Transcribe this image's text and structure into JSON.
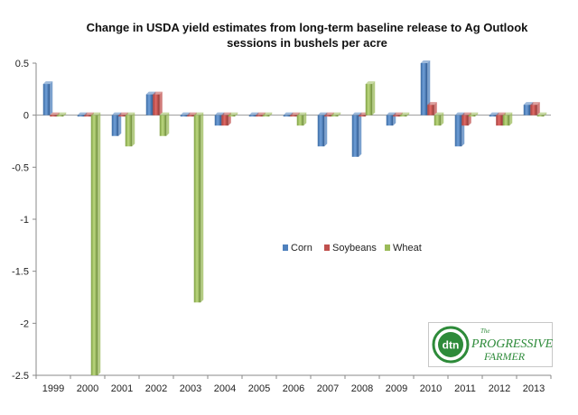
{
  "chart_data": {
    "type": "bar",
    "title_lines": [
      "Change in USDA yield estimates from long-term baseline release to Ag Outlook",
      "sessions in bushels per acre"
    ],
    "categories": [
      "1999",
      "2000",
      "2001",
      "2002",
      "2003",
      "2004",
      "2005",
      "2006",
      "2007",
      "2008",
      "2009",
      "2010",
      "2011",
      "2012",
      "2013"
    ],
    "series": [
      {
        "name": "Corn",
        "color": "#4f81bd",
        "values": [
          0.3,
          0,
          -0.2,
          0.2,
          0,
          -0.1,
          0,
          0,
          -0.3,
          -0.4,
          -0.1,
          0.5,
          -0.3,
          0,
          0.1
        ]
      },
      {
        "name": "Soybeans",
        "color": "#c0504d",
        "values": [
          0,
          0,
          0,
          0.2,
          0,
          -0.1,
          0,
          0,
          0,
          0,
          0,
          0.1,
          -0.1,
          -0.1,
          0.1
        ]
      },
      {
        "name": "Wheat",
        "color": "#9bbb59",
        "values": [
          0,
          -2.5,
          -0.3,
          -0.2,
          -1.8,
          0,
          0,
          -0.1,
          0,
          0.3,
          0,
          -0.1,
          0,
          -0.1,
          0
        ]
      }
    ],
    "ylim": [
      -2.5,
      0.5
    ],
    "yticks": [
      "0.5",
      "0",
      "-0.5",
      "-1",
      "-1.5",
      "-2",
      "-2.5"
    ],
    "grid": false,
    "legend_position": "center",
    "xlabel": "",
    "ylabel": ""
  },
  "logo": {
    "mark_text": "dtn",
    "line1": "The",
    "line2": "PROGRESSIVE",
    "line3": "FARMER"
  }
}
